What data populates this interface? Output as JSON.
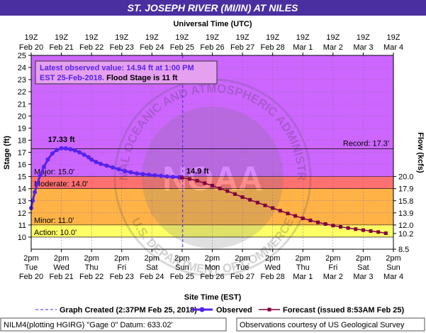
{
  "header": {
    "title": "ST. JOSEPH RIVER (MI/IN) AT NILES",
    "top_axis_title": "Universal Time (UTC)",
    "bottom_axis_title": "Site Time (EST)"
  },
  "info_box": {
    "line1": "Latest observed value: 14.94 ft at 1:00 PM",
    "line2_prefix": "EST 25-Feb-2018.",
    "line2_suffix": " Flood Stage is 11 ft"
  },
  "watermark": {
    "center": "NOAA",
    "ring_top": "NATIONAL OCEANIC AND ATMOSPHERIC ADMINISTRATION",
    "ring_bottom": "U.S. DEPARTMENT OF COMMERCE"
  },
  "legend": {
    "graph_created": "Graph Created (2:37PM Feb 25, 2018)",
    "observed": "Observed",
    "forecast": "Forecast (issued 8:53AM Feb 25)"
  },
  "footer": {
    "left": "NILM4(plotting HGIRG) \"Gage 0\" Datum: 633.02'",
    "right": "Observations courtesy of US Geological Survey"
  },
  "colors": {
    "record_zone": "#e481f0",
    "major_zone": "#cc66ff",
    "moderate_zone": "#ff7070",
    "minor_zone": "#ffb347",
    "action_zone": "#ffff66",
    "normal_zone": "#ffffff",
    "observed": "#5522ee",
    "forecast": "#800040",
    "title_bg": "#4a2fa0",
    "info_text": "#5522ee"
  },
  "chart_data": {
    "type": "line",
    "title": "ST. JOSEPH RIVER (MI/IN) AT NILES",
    "xlabel": "Site Time (EST)",
    "ylabel": "Stage (ft)",
    "y2label": "Flow (kcfs)",
    "ylim": [
      9,
      25
    ],
    "y_ticks": [
      "10",
      "11",
      "12",
      "13",
      "14",
      "15",
      "16",
      "17",
      "18",
      "19",
      "20",
      "21",
      "22",
      "23",
      "24",
      "25"
    ],
    "y2_ticks": [
      {
        "stage": 10.3,
        "label": "10.2"
      },
      {
        "stage": 11.0,
        "label": "12.0"
      },
      {
        "stage": 12.0,
        "label": "13.9"
      },
      {
        "stage": 13.0,
        "label": "15.8"
      },
      {
        "stage": 14.0,
        "label": "17.9"
      },
      {
        "stage": 15.0,
        "label": "20.0"
      },
      {
        "stage": 9.0,
        "label": "8.5"
      }
    ],
    "x_range_days": [
      0,
      12
    ],
    "bottom_ticks": [
      {
        "day": 0,
        "time": "2pm",
        "dow": "Tue",
        "date": "Feb 20"
      },
      {
        "day": 1,
        "time": "2pm",
        "dow": "Wed",
        "date": "Feb 21"
      },
      {
        "day": 2,
        "time": "2pm",
        "dow": "Thu",
        "date": "Feb 22"
      },
      {
        "day": 3,
        "time": "2pm",
        "dow": "Fri",
        "date": "Feb 23"
      },
      {
        "day": 4,
        "time": "2pm",
        "dow": "Sat",
        "date": "Feb 24"
      },
      {
        "day": 5,
        "time": "2pm",
        "dow": "Sun",
        "date": "Feb 25"
      },
      {
        "day": 6,
        "time": "2pm",
        "dow": "Mon",
        "date": "Feb 26"
      },
      {
        "day": 7,
        "time": "2pm",
        "dow": "Tue",
        "date": "Feb 27"
      },
      {
        "day": 8,
        "time": "2pm",
        "dow": "Wed",
        "date": "Feb 28"
      },
      {
        "day": 9,
        "time": "2pm",
        "dow": "Thu",
        "date": "Mar 1"
      },
      {
        "day": 10,
        "time": "2pm",
        "dow": "Fri",
        "date": "Mar 2"
      },
      {
        "day": 11,
        "time": "2pm",
        "dow": "Sat",
        "date": "Mar 3"
      },
      {
        "day": 12,
        "time": "2pm",
        "dow": "Sun",
        "date": "Mar 4"
      }
    ],
    "top_ticks": [
      {
        "day": 0,
        "time": "19Z",
        "date": "Feb 20"
      },
      {
        "day": 1,
        "time": "19Z",
        "date": "Feb 21"
      },
      {
        "day": 2,
        "time": "19Z",
        "date": "Feb 22"
      },
      {
        "day": 3,
        "time": "19Z",
        "date": "Feb 23"
      },
      {
        "day": 4,
        "time": "19Z",
        "date": "Feb 24"
      },
      {
        "day": 5,
        "time": "19Z",
        "date": "Feb 25"
      },
      {
        "day": 6,
        "time": "19Z",
        "date": "Feb 26"
      },
      {
        "day": 7,
        "time": "19Z",
        "date": "Feb 27"
      },
      {
        "day": 8,
        "time": "19Z",
        "date": "Feb 28"
      },
      {
        "day": 9,
        "time": "19Z",
        "date": "Mar 1"
      },
      {
        "day": 10,
        "time": "19Z",
        "date": "Mar 2"
      },
      {
        "day": 11,
        "time": "19Z",
        "date": "Mar 3"
      },
      {
        "day": 12,
        "time": "19Z",
        "date": "Mar 4"
      }
    ],
    "flood_categories": [
      {
        "name": "action",
        "label": "Action: 10.0'",
        "stage": 10.0
      },
      {
        "name": "minor",
        "label": "Minor: 11.0'",
        "stage": 11.0
      },
      {
        "name": "moderate",
        "label": "Moderate: 14.0'",
        "stage": 14.0
      },
      {
        "name": "major",
        "label": "Major: 15.0'",
        "stage": 15.0
      }
    ],
    "record": {
      "label": "Record: 17.3'",
      "stage": 17.3
    },
    "graph_created_day": 5.02,
    "observed": {
      "name": "Observed",
      "x_days": [
        0,
        0.05,
        0.12,
        0.2,
        0.3,
        0.42,
        0.55,
        0.7,
        0.85,
        1.0,
        1.15,
        1.3,
        1.45,
        1.6,
        1.75,
        1.9,
        2.0,
        2.15,
        2.3,
        2.5,
        2.7,
        2.9,
        3.1,
        3.3,
        3.5,
        3.7,
        3.9,
        4.1,
        4.3,
        4.5,
        4.7,
        4.9,
        4.96
      ],
      "values": [
        12.4,
        13.0,
        13.7,
        14.4,
        15.1,
        15.8,
        16.4,
        16.9,
        17.2,
        17.33,
        17.32,
        17.25,
        17.15,
        17.0,
        16.8,
        16.6,
        16.4,
        16.2,
        16.05,
        15.9,
        15.75,
        15.6,
        15.45,
        15.35,
        15.25,
        15.2,
        15.15,
        15.1,
        15.05,
        15.0,
        14.97,
        14.94,
        14.94
      ]
    },
    "forecast": {
      "name": "Forecast",
      "x_days": [
        5.0,
        5.25,
        5.5,
        5.75,
        6.0,
        6.25,
        6.5,
        6.75,
        7.0,
        7.25,
        7.5,
        7.75,
        8.0,
        8.25,
        8.5,
        8.75,
        9.0,
        9.25,
        9.5,
        9.75,
        10.0,
        10.25,
        10.5,
        10.75,
        11.0,
        11.25,
        11.5,
        11.75
      ],
      "values": [
        14.9,
        14.8,
        14.65,
        14.45,
        14.25,
        14.02,
        13.8,
        13.55,
        13.3,
        13.08,
        12.85,
        12.62,
        12.4,
        12.18,
        11.95,
        11.75,
        11.55,
        11.38,
        11.22,
        11.08,
        10.95,
        10.85,
        10.75,
        10.66,
        10.58,
        10.5,
        10.42,
        10.32
      ]
    },
    "annotations": [
      {
        "text": "17.33 ft",
        "x_day": 1.0,
        "stage": 17.33
      },
      {
        "text": "14.9 ft",
        "x_day": 5.0,
        "stage": 14.94
      }
    ]
  }
}
